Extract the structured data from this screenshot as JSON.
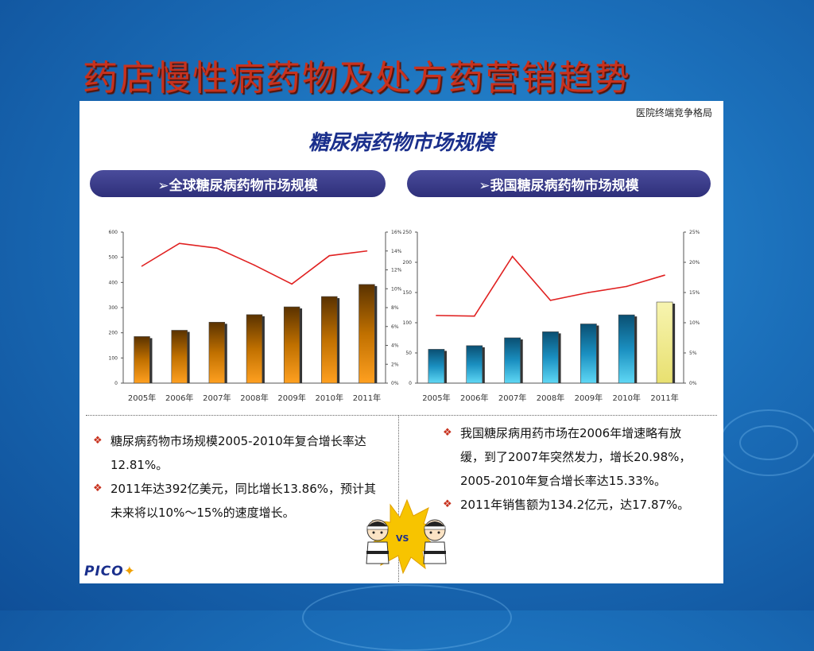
{
  "slide": {
    "title": "药店慢性病药物及处方药营销趋势"
  },
  "panel": {
    "corner_label": "医院终端竞争格局",
    "title": "糖尿病药物市场规模",
    "left_header": "➢全球糖尿病药物市场规模",
    "right_header": "➢我国糖尿病药物市场规模",
    "logo_text": "PICO",
    "vs_label": "VS"
  },
  "notes_left": [
    "糖尿病药物市场规模2005-2010年复合增长率达12.81%。",
    "2011年达392亿美元，同比增长13.86%，预计其未来将以10%～15%的速度增长。"
  ],
  "notes_right": [
    "我国糖尿病用药市场在2006年增速略有放缓，到了2007年突然发力，增长20.98%， 2005-2010年复合增长率达15.33%。",
    "2011年销售额为134.2亿元，达17.87%。"
  ],
  "colors": {
    "title_red": "#c8321e",
    "pill_blue": "#3a3c8a",
    "line_red": "#e02020",
    "bar_orange": "#e88a00",
    "bar_teal": "#1aa6d0",
    "bar_yellow": "#f2ee8a"
  },
  "chart_data": [
    {
      "type": "bar",
      "categories": [
        "2005年",
        "2006年",
        "2007年",
        "2008年",
        "2009年",
        "2010年",
        "2011年"
      ],
      "series": [
        {
          "type": "bar",
          "axis": "left",
          "values": [
            185,
            210,
            242,
            272,
            303,
            344,
            392
          ]
        },
        {
          "type": "line",
          "axis": "right",
          "values": [
            0.124,
            0.148,
            0.143,
            0.125,
            0.105,
            0.135,
            0.14
          ]
        }
      ],
      "ylim": [
        0,
        600
      ],
      "yticks": [
        "0",
        "100",
        "200",
        "300",
        "400",
        "500",
        "600"
      ],
      "y2lim": [
        0,
        0.16
      ],
      "y2ticks": [
        "0%",
        "2%",
        "4%",
        "6%",
        "8%",
        "10%",
        "12%",
        "14%",
        "16%"
      ],
      "grid": false
    },
    {
      "type": "bar",
      "categories": [
        "2005年",
        "2006年",
        "2007年",
        "2008年",
        "2009年",
        "2010年",
        "2011年"
      ],
      "series": [
        {
          "type": "bar",
          "axis": "left",
          "values": [
            56,
            62,
            75,
            85,
            98,
            113,
            134.2
          ],
          "highlight_last": true
        },
        {
          "type": "line",
          "axis": "right",
          "values": [
            0.112,
            0.111,
            0.2098,
            0.137,
            0.15,
            0.16,
            0.1787
          ]
        }
      ],
      "ylim": [
        0,
        250
      ],
      "yticks": [
        "0",
        "50",
        "100",
        "150",
        "200",
        "250"
      ],
      "y2lim": [
        0,
        0.25
      ],
      "y2ticks": [
        "0%",
        "5%",
        "10%",
        "15%",
        "20%",
        "25%"
      ],
      "grid": false
    }
  ]
}
